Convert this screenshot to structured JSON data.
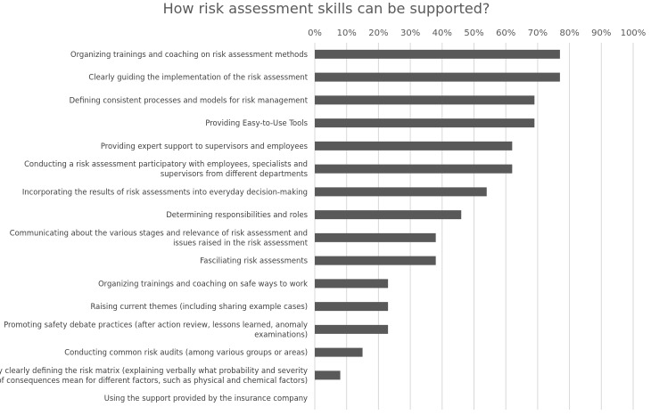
{
  "chart_data": {
    "type": "bar",
    "orientation": "horizontal",
    "title": "How risk assessment skills can be supported?",
    "xlim": [
      0,
      100
    ],
    "x_tick_labels": [
      "0%",
      "10%",
      "20%",
      "30%",
      "40%",
      "50%",
      "60%",
      "70%",
      "80%",
      "90%",
      "100%"
    ],
    "grid": true,
    "legend": "none",
    "bar_color": "#595959",
    "categories": [
      [
        "Organizing trainings and coaching on risk assessment methods"
      ],
      [
        "Clearly guiding the implementation of the risk assessment"
      ],
      [
        "Defining consistent processes and models for risk management"
      ],
      [
        "Providing Easy-to-Use Tools"
      ],
      [
        "Providing expert support to supervisors and employees"
      ],
      [
        "Conducting a risk assessment participatory with employees, specialists and",
        "supervisors from different departments"
      ],
      [
        "Incorporating the results of risk assessments into everyday decision-making"
      ],
      [
        "Determining responsibilities and roles"
      ],
      [
        "Communicating about the various stages and relevance of risk assessment and",
        "issues raised in the risk assessment"
      ],
      [
        "Fasciliating risk assessments"
      ],
      [
        "Organizing trainings and coaching on safe ways to work"
      ],
      [
        "Raising current themes (including sharing example cases)"
      ],
      [
        "Promoting safety debate practices (after action review, lessons learned, anomaly",
        "examinations)"
      ],
      [
        "Conducting common risk audits (among various groups or areas)"
      ],
      [
        "By clearly defining the risk matrix (explaining verbally what probability and severity",
        "of consequences mean for different factors, such as physical and chemical factors)"
      ],
      [
        "Using the support provided by the insurance company"
      ]
    ],
    "values": [
      77,
      77,
      69,
      69,
      62,
      62,
      54,
      46,
      38,
      38,
      23,
      23,
      23,
      15,
      8,
      0
    ]
  }
}
